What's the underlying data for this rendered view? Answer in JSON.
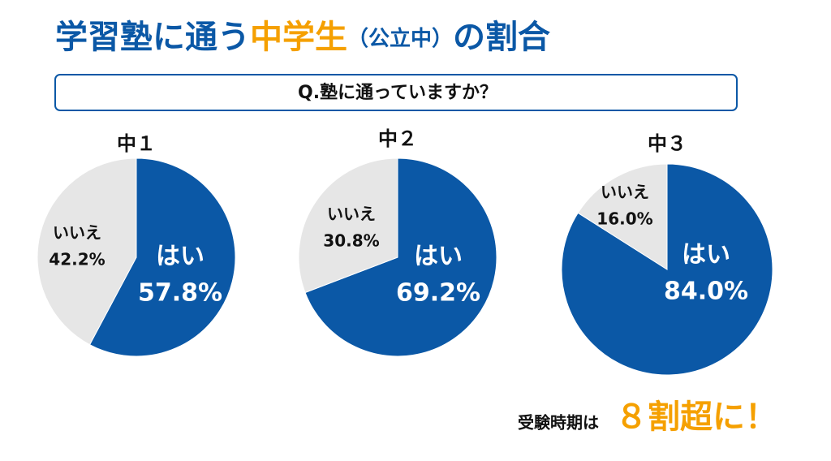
{
  "header": {
    "title_parts": [
      "学習塾に通う",
      "中学生",
      "（公立中）",
      "の割合"
    ],
    "question": "Q.塾に通っていますか？"
  },
  "chart_data": [
    {
      "type": "pie",
      "title": "中１",
      "categories": [
        "はい",
        "いいえ"
      ],
      "values": [
        57.8,
        42.2
      ],
      "value_labels": [
        "57.8%",
        "42.2%"
      ],
      "colors": [
        "#0b58a6",
        "#e6e6e6"
      ]
    },
    {
      "type": "pie",
      "title": "中２",
      "categories": [
        "はい",
        "いいえ"
      ],
      "values": [
        69.2,
        30.8
      ],
      "value_labels": [
        "69.2%",
        "30.8%"
      ],
      "colors": [
        "#0b58a6",
        "#e6e6e6"
      ]
    },
    {
      "type": "pie",
      "title": "中３",
      "categories": [
        "はい",
        "いいえ"
      ],
      "values": [
        84.0,
        16.0
      ],
      "value_labels": [
        "84.0%",
        "16.0%"
      ],
      "colors": [
        "#0b58a6",
        "#e6e6e6"
      ]
    }
  ],
  "footer": {
    "lead": "受験時期は",
    "highlight": "８割超に！"
  }
}
